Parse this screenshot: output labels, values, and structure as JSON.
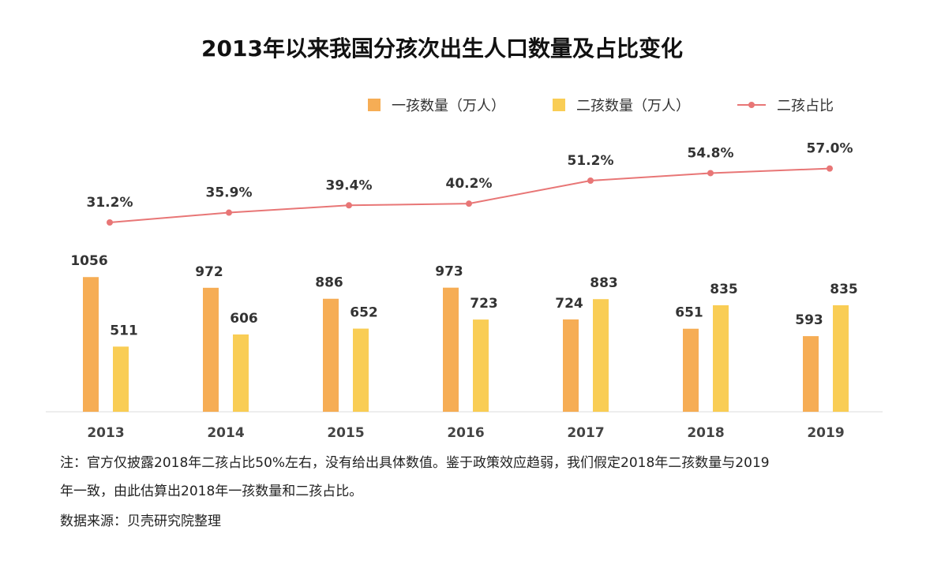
{
  "chart_data": {
    "type": "bar",
    "title": "2013年以来我国分孩次出生人口数量及占比变化",
    "categories": [
      "2013",
      "2014",
      "2015",
      "2016",
      "2017",
      "2018",
      "2019"
    ],
    "series": [
      {
        "name": "一孩数量（万人）",
        "type": "bar",
        "color": "#f6ad55",
        "values": [
          1056,
          972,
          886,
          973,
          724,
          651,
          593
        ],
        "labels": [
          "1056",
          "972",
          "886",
          "973",
          "724",
          "651",
          "593"
        ]
      },
      {
        "name": "二孩数量（万人）",
        "type": "bar",
        "color": "#f9cd55",
        "values": [
          511,
          606,
          652,
          723,
          883,
          835,
          835
        ],
        "labels": [
          "511",
          "606",
          "652",
          "723",
          "883",
          "835",
          "835"
        ]
      },
      {
        "name": "二孩占比",
        "type": "line",
        "color": "#e87676",
        "values": [
          31.2,
          35.9,
          39.4,
          40.2,
          51.2,
          54.8,
          57.0
        ],
        "labels": [
          "31.2%",
          "35.9%",
          "39.4%",
          "40.2%",
          "51.2%",
          "54.8%",
          "57.0%"
        ]
      }
    ],
    "legend_position": "top-right",
    "grid": false
  },
  "notes": {
    "line1": "注：官方仅披露2018年二孩占比50%左右，没有给出具体数值。鉴于政策效应趋弱，我们假定2018年二孩数量与2019",
    "line2": "年一致，由此估算出2018年一孩数量和二孩占比。",
    "source": "数据来源：贝壳研究院整理"
  }
}
